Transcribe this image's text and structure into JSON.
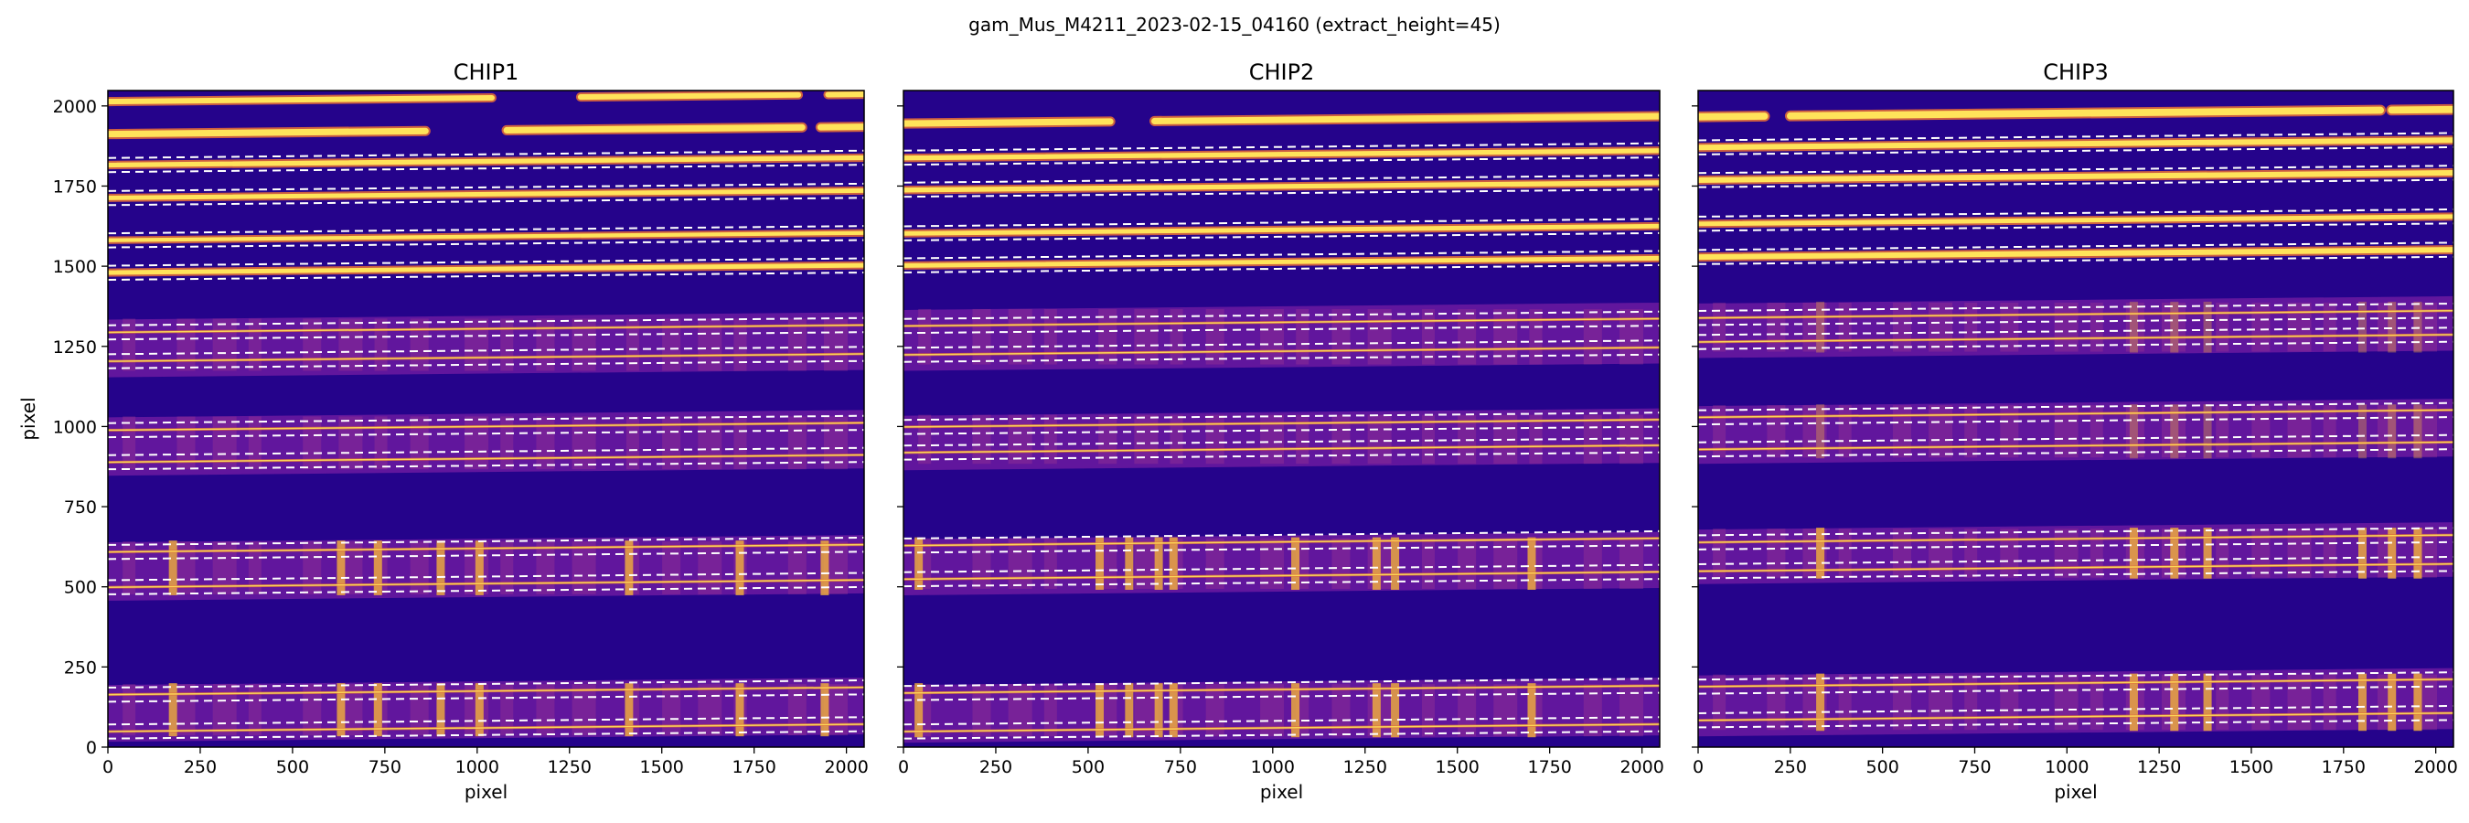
{
  "figure_title": "gam_Mus_M4211_2023-02-15_04160  (extract_height=45)",
  "colors": {
    "background": "#25038b",
    "background_dark": "#1e0478",
    "order_band": "#6c1aa0",
    "band_patch": "#a33a8e",
    "trace_glow": "#e0693a",
    "trace_core": "#ffe35a",
    "line_hot": "#f2b13a",
    "aperture": "#ffffff"
  },
  "chart_data": [
    {
      "type": "heatmap",
      "title": "CHIP1",
      "xlabel": "pixel",
      "ylabel": "pixel",
      "xlim": [
        0,
        2048
      ],
      "ylim": [
        0,
        2048
      ],
      "xticks": [
        0,
        250,
        500,
        750,
        1000,
        1250,
        1500,
        1750,
        2000
      ],
      "yticks": [
        0,
        250,
        500,
        750,
        1000,
        1250,
        1500,
        1750,
        2000
      ],
      "colormap": "plasma",
      "star_traces": [
        {
          "y0": 2015,
          "y1": 2035,
          "gaps": [
            [
              1040,
              1280
            ],
            [
              1870,
              1950
            ]
          ]
        },
        {
          "y0": 1912,
          "y1": 1935,
          "gaps": [
            [
              860,
              1080
            ],
            [
              1880,
              1930
            ]
          ]
        },
        {
          "y0": 1818,
          "y1": 1836
        },
        {
          "y0": 1716,
          "y1": 1733
        },
        {
          "y0": 1585,
          "y1": 1600
        },
        {
          "y0": 1483,
          "y1": 1500
        }
      ],
      "sky_bands": [
        [
          1165,
          1345
        ],
        [
          858,
          1040
        ],
        [
          468,
          650
        ],
        [
          28,
          205
        ]
      ],
      "sky_traces": [
        1215,
        1305,
        900,
        1000,
        510,
        620,
        60,
        175
      ],
      "emission_lines": [
        175,
        630,
        730,
        900,
        1005,
        1410,
        1710,
        1940
      ],
      "apertures": [
        {
          "center": 1827,
          "halfwidth": 22
        },
        {
          "center": 1724,
          "halfwidth": 22
        },
        {
          "center": 1592,
          "halfwidth": 22
        },
        {
          "center": 1491,
          "halfwidth": 22
        },
        {
          "center": 1305,
          "halfwidth": 22
        },
        {
          "center": 1215,
          "halfwidth": 22
        },
        {
          "center": 1000,
          "halfwidth": 22
        },
        {
          "center": 900,
          "halfwidth": 22
        },
        {
          "center": 620,
          "halfwidth": 22
        },
        {
          "center": 510,
          "halfwidth": 22
        },
        {
          "center": 175,
          "halfwidth": 22
        },
        {
          "center": 60,
          "halfwidth": 22
        }
      ]
    },
    {
      "type": "heatmap",
      "title": "CHIP2",
      "xlabel": "pixel",
      "ylabel": "",
      "xlim": [
        0,
        2048
      ],
      "ylim": [
        0,
        2048
      ],
      "xticks": [
        0,
        250,
        500,
        750,
        1000,
        1250,
        1500,
        1750,
        2000
      ],
      "yticks": [
        0,
        250,
        500,
        750,
        1000,
        1250,
        1500,
        1750,
        2000
      ],
      "colormap": "plasma",
      "star_traces": [
        {
          "y0": 1945,
          "y1": 1968,
          "gaps": [
            [
              560,
              680
            ]
          ]
        },
        {
          "y0": 1840,
          "y1": 1858
        },
        {
          "y0": 1740,
          "y1": 1758
        },
        {
          "y0": 1605,
          "y1": 1622
        },
        {
          "y0": 1505,
          "y1": 1522
        }
      ],
      "sky_bands": [
        [
          1185,
          1375
        ],
        [
          875,
          1045
        ],
        [
          485,
          660
        ],
        [
          25,
          205
        ]
      ],
      "sky_traces": [
        1235,
        1325,
        930,
        1010,
        535,
        640,
        60,
        180
      ],
      "emission_lines": [
        40,
        530,
        610,
        690,
        730,
        1060,
        1280,
        1330,
        1700
      ],
      "apertures": [
        {
          "center": 1850,
          "halfwidth": 22
        },
        {
          "center": 1750,
          "halfwidth": 22
        },
        {
          "center": 1614,
          "halfwidth": 22
        },
        {
          "center": 1514,
          "halfwidth": 22
        },
        {
          "center": 1325,
          "halfwidth": 22
        },
        {
          "center": 1235,
          "halfwidth": 22
        },
        {
          "center": 1010,
          "halfwidth": 22
        },
        {
          "center": 930,
          "halfwidth": 22
        },
        {
          "center": 640,
          "halfwidth": 22
        },
        {
          "center": 535,
          "halfwidth": 22
        },
        {
          "center": 180,
          "halfwidth": 22
        },
        {
          "center": 60,
          "halfwidth": 22
        }
      ]
    },
    {
      "type": "heatmap",
      "title": "CHIP3",
      "xlabel": "pixel",
      "ylabel": "",
      "xlim": [
        0,
        2048
      ],
      "ylim": [
        0,
        2048
      ],
      "xticks": [
        0,
        250,
        500,
        750,
        1000,
        1250,
        1500,
        1750,
        2000
      ],
      "yticks": [
        0,
        250,
        500,
        750,
        1000,
        1250,
        1500,
        1750,
        2000
      ],
      "colormap": "plasma",
      "star_traces": [
        {
          "y0": 1965,
          "y1": 1990,
          "gaps": [
            [
              180,
              250
            ],
            [
              1850,
              1880
            ]
          ]
        },
        {
          "y0": 1872,
          "y1": 1892
        },
        {
          "y0": 1770,
          "y1": 1790
        },
        {
          "y0": 1635,
          "y1": 1652
        },
        {
          "y0": 1530,
          "y1": 1550
        }
      ],
      "sky_bands": [
        [
          1225,
          1395
        ],
        [
          895,
          1075
        ],
        [
          520,
          690
        ],
        [
          45,
          235
        ]
      ],
      "sky_traces": [
        1275,
        1350,
        940,
        1040,
        560,
        650,
        95,
        200
      ],
      "emission_lines": [
        330,
        1180,
        1290,
        1380,
        1800,
        1880,
        1950
      ],
      "apertures": [
        {
          "center": 1882,
          "halfwidth": 22
        },
        {
          "center": 1780,
          "halfwidth": 22
        },
        {
          "center": 1644,
          "halfwidth": 22
        },
        {
          "center": 1540,
          "halfwidth": 22
        },
        {
          "center": 1350,
          "halfwidth": 22
        },
        {
          "center": 1275,
          "halfwidth": 22
        },
        {
          "center": 1040,
          "halfwidth": 22
        },
        {
          "center": 940,
          "halfwidth": 22
        },
        {
          "center": 650,
          "halfwidth": 22
        },
        {
          "center": 560,
          "halfwidth": 22
        },
        {
          "center": 200,
          "halfwidth": 22
        },
        {
          "center": 95,
          "halfwidth": 22
        }
      ]
    }
  ]
}
